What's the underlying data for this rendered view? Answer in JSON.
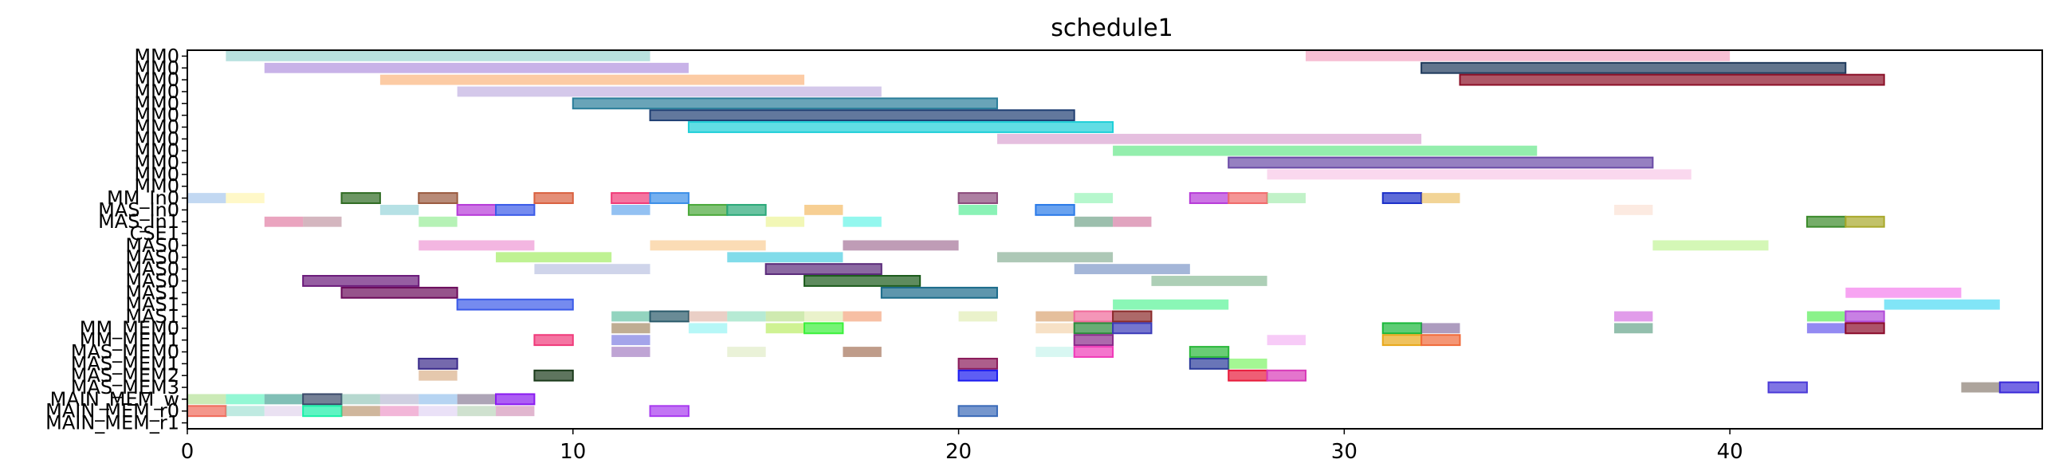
{
  "chart_data": {
    "type": "gantt",
    "title": "schedule1",
    "xlabel": "",
    "ylabel": "",
    "xlim": [
      0,
      48.1
    ],
    "xticks": [
      0,
      10,
      20,
      30,
      40
    ],
    "grid": false,
    "legend": "none",
    "rows": [
      "MM0",
      "MM0",
      "MM0",
      "MM0",
      "MM0",
      "MM0",
      "MM0",
      "MM0",
      "MM0",
      "MM0",
      "MM0",
      "MM0",
      "MM_In0",
      "MAS_In0",
      "MAS_In1",
      "CSE1",
      "MAS0",
      "MAS0",
      "MAS0",
      "MAS0",
      "MAS1",
      "MAS1",
      "MAS1",
      "MM_MEM0",
      "MM_MEM1",
      "MAS_MEM0",
      "MAS_MEM1",
      "MAS_MEM2",
      "MAS_MEM3",
      "MAIN_MEM_w",
      "MAIN_MEM_r0",
      "MAIN_MEM_r1"
    ],
    "bars": [
      {
        "row": 0,
        "start": 1,
        "end": 12,
        "color": "#7fc8c4",
        "edge": false
      },
      {
        "row": 0,
        "start": 29,
        "end": 40,
        "color": "#f08cb0",
        "edge": false
      },
      {
        "row": 1,
        "start": 2,
        "end": 13,
        "color": "#9a72d6",
        "edge": false
      },
      {
        "row": 1,
        "start": 32,
        "end": 43,
        "color": "#1f3a5c",
        "edge": true
      },
      {
        "row": 2,
        "start": 5,
        "end": 16,
        "color": "#f9a05a",
        "edge": false
      },
      {
        "row": 2,
        "start": 33,
        "end": 44,
        "color": "#8b0f26",
        "edge": true
      },
      {
        "row": 3,
        "start": 7,
        "end": 18,
        "color": "#b09ad8",
        "edge": false
      },
      {
        "row": 4,
        "start": 10,
        "end": 21,
        "color": "#2a7d9a",
        "edge": true
      },
      {
        "row": 5,
        "start": 12,
        "end": 23,
        "color": "#1f3f73",
        "edge": true
      },
      {
        "row": 6,
        "start": 13,
        "end": 24,
        "color": "#1ecfd8",
        "edge": true
      },
      {
        "row": 7,
        "start": 21,
        "end": 32,
        "color": "#d08ac4",
        "edge": false
      },
      {
        "row": 8,
        "start": 24,
        "end": 35,
        "color": "#3de06a",
        "edge": false
      },
      {
        "row": 9,
        "start": 27,
        "end": 38,
        "color": "#6a4aa6",
        "edge": true
      },
      {
        "row": 10,
        "start": 28,
        "end": 39,
        "color": "#f5b8e0",
        "edge": false
      },
      {
        "row": 12,
        "start": 0,
        "end": 1,
        "color": "#8fb8e8",
        "edge": false
      },
      {
        "row": 12,
        "start": 1,
        "end": 2,
        "color": "#fff29a",
        "edge": false
      },
      {
        "row": 12,
        "start": 4,
        "end": 5,
        "color": "#2f6b22",
        "edge": true
      },
      {
        "row": 12,
        "start": 6,
        "end": 7,
        "color": "#9a5a3e",
        "edge": true
      },
      {
        "row": 12,
        "start": 9,
        "end": 10,
        "color": "#d9603e",
        "edge": true
      },
      {
        "row": 12,
        "start": 11,
        "end": 12,
        "color": "#f03a78",
        "edge": true
      },
      {
        "row": 12,
        "start": 12,
        "end": 13,
        "color": "#3a8ee8",
        "edge": true
      },
      {
        "row": 12,
        "start": 20,
        "end": 21,
        "color": "#8a4a7a",
        "edge": true
      },
      {
        "row": 12,
        "start": 23,
        "end": 24,
        "color": "#7af0a4",
        "edge": false
      },
      {
        "row": 12,
        "start": 26,
        "end": 27,
        "color": "#b63ad8",
        "edge": true
      },
      {
        "row": 12,
        "start": 27,
        "end": 28,
        "color": "#f06a6a",
        "edge": true
      },
      {
        "row": 12,
        "start": 28,
        "end": 29,
        "color": "#8ee89a",
        "edge": false
      },
      {
        "row": 12,
        "start": 31,
        "end": 32,
        "color": "#1a2ec8",
        "edge": true
      },
      {
        "row": 12,
        "start": 32,
        "end": 33,
        "color": "#e8b040",
        "edge": false
      },
      {
        "row": 13,
        "start": 5,
        "end": 6,
        "color": "#7ac8d0",
        "edge": false
      },
      {
        "row": 13,
        "start": 7,
        "end": 8,
        "color": "#b63ad8",
        "edge": true
      },
      {
        "row": 13,
        "start": 8,
        "end": 9,
        "color": "#3a5ae8",
        "edge": true
      },
      {
        "row": 13,
        "start": 11,
        "end": 12,
        "color": "#3a8ee8",
        "edge": false
      },
      {
        "row": 13,
        "start": 13,
        "end": 14,
        "color": "#4aa83a",
        "edge": true
      },
      {
        "row": 13,
        "start": 14,
        "end": 15,
        "color": "#2aa878",
        "edge": true
      },
      {
        "row": 13,
        "start": 16,
        "end": 17,
        "color": "#f0a83a",
        "edge": false
      },
      {
        "row": 13,
        "start": 20,
        "end": 21,
        "color": "#2ae87a",
        "edge": false
      },
      {
        "row": 13,
        "start": 22,
        "end": 23,
        "color": "#2a7ae8",
        "edge": true
      },
      {
        "row": 13,
        "start": 37,
        "end": 38,
        "color": "#fad8c8",
        "edge": false
      },
      {
        "row": 14,
        "start": 2,
        "end": 3,
        "color": "#d85a8a",
        "edge": false
      },
      {
        "row": 14,
        "start": 3,
        "end": 4,
        "color": "#b07a8a",
        "edge": false
      },
      {
        "row": 14,
        "start": 6,
        "end": 7,
        "color": "#7ae87a",
        "edge": false
      },
      {
        "row": 14,
        "start": 15,
        "end": 16,
        "color": "#e8f07a",
        "edge": false
      },
      {
        "row": 14,
        "start": 17,
        "end": 18,
        "color": "#3af0e0",
        "edge": false
      },
      {
        "row": 14,
        "start": 23,
        "end": 24,
        "color": "#4a8a6a",
        "edge": false
      },
      {
        "row": 14,
        "start": 24,
        "end": 25,
        "color": "#c85a8a",
        "edge": false
      },
      {
        "row": 14,
        "start": 42,
        "end": 43,
        "color": "#3a8a2a",
        "edge": true
      },
      {
        "row": 14,
        "start": 43,
        "end": 44,
        "color": "#a8a82a",
        "edge": true
      },
      {
        "row": 16,
        "start": 6,
        "end": 9,
        "color": "#ea7ac8",
        "edge": false
      },
      {
        "row": 16,
        "start": 12,
        "end": 15,
        "color": "#f8c078",
        "edge": false
      },
      {
        "row": 16,
        "start": 17,
        "end": 20,
        "color": "#8a4a7a",
        "edge": false
      },
      {
        "row": 16,
        "start": 38,
        "end": 41,
        "color": "#b0f07a",
        "edge": false
      },
      {
        "row": 17,
        "start": 8,
        "end": 11,
        "color": "#8ae83a",
        "edge": false
      },
      {
        "row": 17,
        "start": 14,
        "end": 17,
        "color": "#1ac0d8",
        "edge": false
      },
      {
        "row": 17,
        "start": 21,
        "end": 24,
        "color": "#6a9a7a",
        "edge": false
      },
      {
        "row": 18,
        "start": 9,
        "end": 12,
        "color": "#a8b0d8",
        "edge": false
      },
      {
        "row": 18,
        "start": 15,
        "end": 18,
        "color": "#5a2a7a",
        "edge": true
      },
      {
        "row": 18,
        "start": 23,
        "end": 26,
        "color": "#5a7ab8",
        "edge": false
      },
      {
        "row": 19,
        "start": 3,
        "end": 6,
        "color": "#6a1a7a",
        "edge": true
      },
      {
        "row": 19,
        "start": 16,
        "end": 19,
        "color": "#1a5a1a",
        "edge": true
      },
      {
        "row": 19,
        "start": 25,
        "end": 28,
        "color": "#6aa87a",
        "edge": false
      },
      {
        "row": 20,
        "start": 4,
        "end": 7,
        "color": "#6a0a5a",
        "edge": true
      },
      {
        "row": 20,
        "start": 18,
        "end": 21,
        "color": "#1a6a8a",
        "edge": true
      },
      {
        "row": 20,
        "start": 43,
        "end": 46,
        "color": "#f05ae8",
        "edge": false
      },
      {
        "row": 21,
        "start": 7,
        "end": 10,
        "color": "#3a5ae8",
        "edge": true
      },
      {
        "row": 21,
        "start": 24,
        "end": 27,
        "color": "#2af07a",
        "edge": false
      },
      {
        "row": 21,
        "start": 44,
        "end": 47,
        "color": "#1ad0f0",
        "edge": false
      },
      {
        "row": 22,
        "start": 11,
        "end": 12,
        "color": "#3ab08a",
        "edge": false
      },
      {
        "row": 22,
        "start": 12,
        "end": 13,
        "color": "#2a5a6a",
        "edge": true
      },
      {
        "row": 22,
        "start": 13,
        "end": 14,
        "color": "#d8a898",
        "edge": false
      },
      {
        "row": 22,
        "start": 14,
        "end": 15,
        "color": "#7ad8b0",
        "edge": false
      },
      {
        "row": 22,
        "start": 15,
        "end": 16,
        "color": "#a8d870",
        "edge": false
      },
      {
        "row": 22,
        "start": 16,
        "end": 17,
        "color": "#d8e8a0",
        "edge": false
      },
      {
        "row": 22,
        "start": 17,
        "end": 18,
        "color": "#f08a5a",
        "edge": false
      },
      {
        "row": 22,
        "start": 20,
        "end": 21,
        "color": "#d8e8a0",
        "edge": false
      },
      {
        "row": 22,
        "start": 22,
        "end": 23,
        "color": "#d08a4a",
        "edge": false
      },
      {
        "row": 22,
        "start": 23,
        "end": 24,
        "color": "#f06a9a",
        "edge": true
      },
      {
        "row": 22,
        "start": 24,
        "end": 25,
        "color": "#8a2a2a",
        "edge": true
      },
      {
        "row": 22,
        "start": 37,
        "end": 38,
        "color": "#c84ad8",
        "edge": false
      },
      {
        "row": 22,
        "start": 42,
        "end": 43,
        "color": "#2ae82a",
        "edge": false
      },
      {
        "row": 22,
        "start": 43,
        "end": 44,
        "color": "#b04ad8",
        "edge": true
      },
      {
        "row": 23,
        "start": 11,
        "end": 12,
        "color": "#8a6a3a",
        "edge": false
      },
      {
        "row": 23,
        "start": 13,
        "end": 14,
        "color": "#7af0f0",
        "edge": false
      },
      {
        "row": 23,
        "start": 15,
        "end": 16,
        "color": "#a8e83a",
        "edge": false
      },
      {
        "row": 23,
        "start": 16,
        "end": 17,
        "color": "#3af03a",
        "edge": true
      },
      {
        "row": 23,
        "start": 22,
        "end": 23,
        "color": "#f0c898",
        "edge": false
      },
      {
        "row": 23,
        "start": 23,
        "end": 24,
        "color": "#2a8a3a",
        "edge": true
      },
      {
        "row": 23,
        "start": 24,
        "end": 25,
        "color": "#3a3ab8",
        "edge": true
      },
      {
        "row": 23,
        "start": 31,
        "end": 32,
        "color": "#1ab83a",
        "edge": true
      },
      {
        "row": 23,
        "start": 32,
        "end": 33,
        "color": "#6a4a8a",
        "edge": false
      },
      {
        "row": 23,
        "start": 37,
        "end": 38,
        "color": "#3a8a6a",
        "edge": false
      },
      {
        "row": 23,
        "start": 42,
        "end": 43,
        "color": "#3a2ae8",
        "edge": false
      },
      {
        "row": 23,
        "start": 43,
        "end": 44,
        "color": "#8a0a2a",
        "edge": true
      },
      {
        "row": 24,
        "start": 9,
        "end": 10,
        "color": "#f03a7a",
        "edge": true
      },
      {
        "row": 24,
        "start": 11,
        "end": 12,
        "color": "#5a5ad8",
        "edge": false
      },
      {
        "row": 24,
        "start": 23,
        "end": 24,
        "color": "#8a2a8a",
        "edge": true
      },
      {
        "row": 24,
        "start": 28,
        "end": 29,
        "color": "#f0a0f0",
        "edge": false
      },
      {
        "row": 24,
        "start": 31,
        "end": 32,
        "color": "#e8a81a",
        "edge": true
      },
      {
        "row": 24,
        "start": 32,
        "end": 33,
        "color": "#f06a3a",
        "edge": true
      },
      {
        "row": 25,
        "start": 11,
        "end": 12,
        "color": "#8a5ab0",
        "edge": false
      },
      {
        "row": 25,
        "start": 14,
        "end": 15,
        "color": "#d8e8b8",
        "edge": false
      },
      {
        "row": 25,
        "start": 17,
        "end": 18,
        "color": "#8a4a2a",
        "edge": false
      },
      {
        "row": 25,
        "start": 22,
        "end": 23,
        "color": "#b8f0e8",
        "edge": false
      },
      {
        "row": 25,
        "start": 23,
        "end": 24,
        "color": "#f03ab8",
        "edge": true
      },
      {
        "row": 25,
        "start": 26,
        "end": 27,
        "color": "#2ab83a",
        "edge": true
      },
      {
        "row": 26,
        "start": 6,
        "end": 7,
        "color": "#3a2a8a",
        "edge": true
      },
      {
        "row": 26,
        "start": 20,
        "end": 21,
        "color": "#8a1a5a",
        "edge": true
      },
      {
        "row": 26,
        "start": 26,
        "end": 27,
        "color": "#2a3a9a",
        "edge": true
      },
      {
        "row": 26,
        "start": 27,
        "end": 28,
        "color": "#5af03a",
        "edge": false
      },
      {
        "row": 27,
        "start": 6,
        "end": 7,
        "color": "#d09a6a",
        "edge": false
      },
      {
        "row": 27,
        "start": 9,
        "end": 10,
        "color": "#1a3a1a",
        "edge": true
      },
      {
        "row": 27,
        "start": 20,
        "end": 21,
        "color": "#1a1af0",
        "edge": true
      },
      {
        "row": 27,
        "start": 27,
        "end": 28,
        "color": "#e81a3a",
        "edge": true
      },
      {
        "row": 27,
        "start": 28,
        "end": 29,
        "color": "#d83ab8",
        "edge": true
      },
      {
        "row": 28,
        "start": 41,
        "end": 42,
        "color": "#4a3ad8",
        "edge": true
      },
      {
        "row": 28,
        "start": 46,
        "end": 47,
        "color": "#6a5a4a",
        "edge": false
      },
      {
        "row": 28,
        "start": 47,
        "end": 48,
        "color": "#3a2ad8",
        "edge": true
      },
      {
        "row": 29,
        "start": 0,
        "end": 1,
        "color": "#a0d87a",
        "edge": false
      },
      {
        "row": 29,
        "start": 1,
        "end": 2,
        "color": "#3af0b0",
        "edge": false
      },
      {
        "row": 29,
        "start": 2,
        "end": 3,
        "color": "#1a8a7a",
        "edge": false
      },
      {
        "row": 29,
        "start": 3,
        "end": 4,
        "color": "#3a4a6a",
        "edge": true
      },
      {
        "row": 29,
        "start": 4,
        "end": 5,
        "color": "#7ab8a8",
        "edge": false
      },
      {
        "row": 29,
        "start": 5,
        "end": 6,
        "color": "#a8a8c8",
        "edge": false
      },
      {
        "row": 29,
        "start": 6,
        "end": 7,
        "color": "#7ab0e8",
        "edge": false
      },
      {
        "row": 29,
        "start": 7,
        "end": 8,
        "color": "#6a5a7a",
        "edge": false
      },
      {
        "row": 29,
        "start": 8,
        "end": 9,
        "color": "#8a1af0",
        "edge": true
      },
      {
        "row": 30,
        "start": 0,
        "end": 1,
        "color": "#f06a5a",
        "edge": true
      },
      {
        "row": 30,
        "start": 1,
        "end": 2,
        "color": "#8ad8c8",
        "edge": false
      },
      {
        "row": 30,
        "start": 2,
        "end": 3,
        "color": "#d8c8e8",
        "edge": false
      },
      {
        "row": 30,
        "start": 3,
        "end": 4,
        "color": "#1af0a8",
        "edge": true
      },
      {
        "row": 30,
        "start": 4,
        "end": 5,
        "color": "#a87a4a",
        "edge": false
      },
      {
        "row": 30,
        "start": 5,
        "end": 6,
        "color": "#e87ab8",
        "edge": false
      },
      {
        "row": 30,
        "start": 6,
        "end": 7,
        "color": "#d8c8f0",
        "edge": false
      },
      {
        "row": 30,
        "start": 7,
        "end": 8,
        "color": "#a8c8a8",
        "edge": false
      },
      {
        "row": 30,
        "start": 8,
        "end": 9,
        "color": "#c87aa8",
        "edge": false
      },
      {
        "row": 30,
        "start": 12,
        "end": 13,
        "color": "#a83af0",
        "edge": true
      },
      {
        "row": 30,
        "start": 20,
        "end": 21,
        "color": "#3a6ab8",
        "edge": true
      }
    ]
  }
}
